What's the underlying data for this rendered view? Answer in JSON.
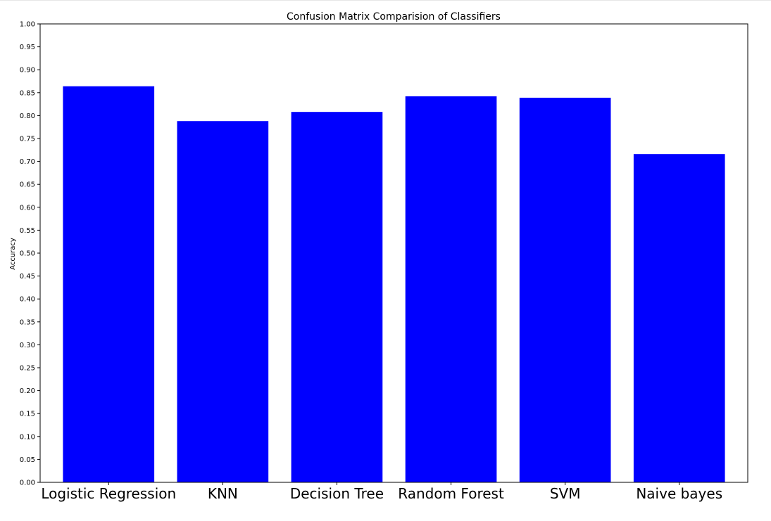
{
  "chart_data": {
    "type": "bar",
    "title": "Confusion Matrix Comparision of Classifiers",
    "xlabel": "",
    "ylabel": "Accuracy",
    "categories": [
      "Logistic Regression",
      "KNN",
      "Decision Tree",
      "Random Forest",
      "SVM",
      "Naive bayes"
    ],
    "values": [
      0.864,
      0.788,
      0.808,
      0.842,
      0.839,
      0.716
    ],
    "ylim": [
      0,
      1.0
    ],
    "yticks": [
      "0.00",
      "0.05",
      "0.10",
      "0.15",
      "0.20",
      "0.25",
      "0.30",
      "0.35",
      "0.40",
      "0.45",
      "0.50",
      "0.55",
      "0.60",
      "0.65",
      "0.70",
      "0.75",
      "0.80",
      "0.85",
      "0.90",
      "0.95",
      "1.00"
    ],
    "bar_color": "#0000ff",
    "grid": false,
    "legend": "none"
  }
}
